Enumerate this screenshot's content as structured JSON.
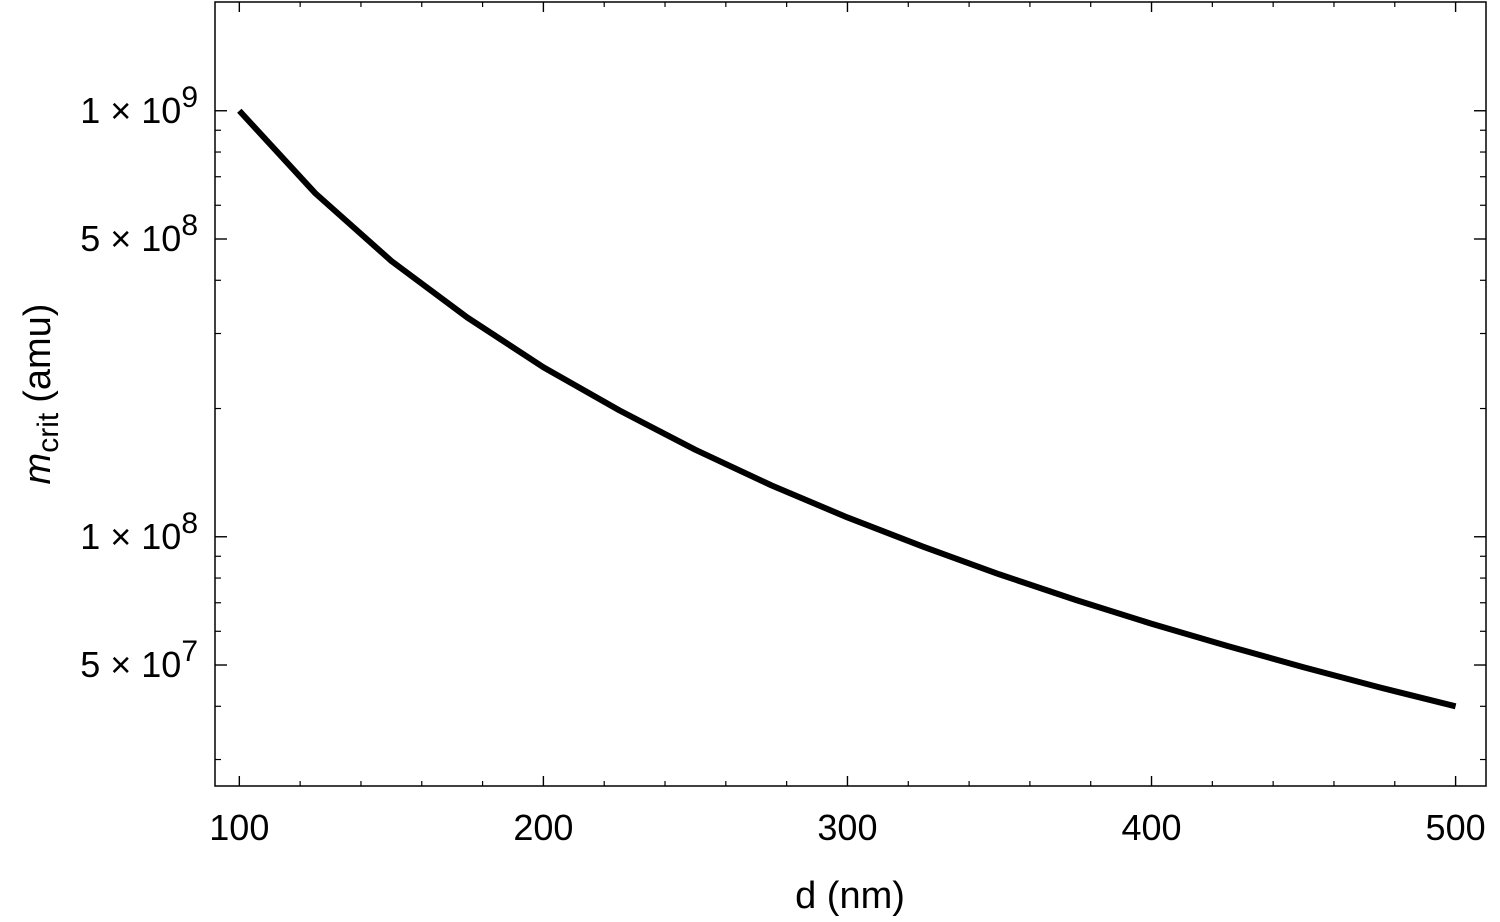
{
  "chart_data": {
    "type": "line",
    "xlabel": "d (nm)",
    "ylabel": {
      "symbol": "m",
      "subscript": "crit",
      "unit": "(amu)"
    },
    "x_scale": "linear",
    "y_scale": "log",
    "xlim": [
      92,
      510
    ],
    "ylim": [
      26000000,
      1800000000
    ],
    "x_ticks": [
      {
        "value": 100,
        "label": "100"
      },
      {
        "value": 200,
        "label": "200"
      },
      {
        "value": 300,
        "label": "300"
      },
      {
        "value": 400,
        "label": "400"
      },
      {
        "value": 500,
        "label": "500"
      }
    ],
    "x_minor_step": 20,
    "y_ticks": [
      {
        "value": 1000000000,
        "mantissa": "1",
        "exponent": "9"
      },
      {
        "value": 500000000,
        "mantissa": "5",
        "exponent": "8"
      },
      {
        "value": 100000000,
        "mantissa": "1",
        "exponent": "8"
      },
      {
        "value": 50000000,
        "mantissa": "5",
        "exponent": "7"
      }
    ],
    "y_minor_values": [
      30000000,
      40000000,
      60000000,
      70000000,
      80000000,
      90000000,
      200000000,
      300000000,
      400000000,
      600000000,
      700000000,
      800000000,
      900000000
    ],
    "series": [
      {
        "color": "#000000",
        "x": [
          100,
          125,
          150,
          175,
          200,
          225,
          250,
          275,
          300,
          325,
          350,
          375,
          400,
          425,
          450,
          475,
          500
        ],
        "y": [
          1000000000,
          640000000,
          444000000,
          327000000,
          250000000,
          198000000,
          160000000,
          132000000,
          111000000,
          94700000,
          81600000,
          71100000,
          62500000,
          55400000,
          49400000,
          44300000,
          40000000
        ]
      }
    ],
    "grid": false,
    "legend": "none"
  }
}
